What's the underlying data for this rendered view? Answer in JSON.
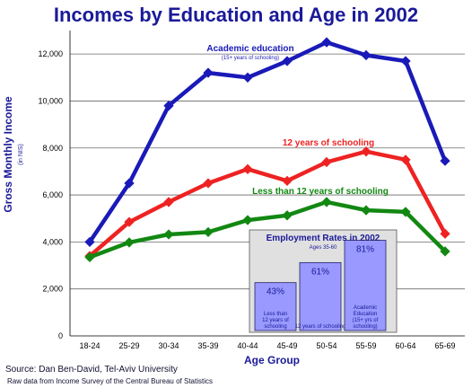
{
  "chart_data": [
    {
      "type": "line",
      "title": "Incomes by Education and Age in 2002",
      "ylabel": "Gross Monthly Income",
      "ylabel_sub": "(in NIS)",
      "xlabel": "Age Group",
      "categories": [
        "18-24",
        "25-29",
        "30-34",
        "35-39",
        "40-44",
        "45-49",
        "50-54",
        "55-59",
        "60-64",
        "65-69"
      ],
      "yticks": [
        "0",
        "2,000",
        "4,000",
        "6,000",
        "8,000",
        "10,000",
        "12,000"
      ],
      "ylim": [
        0,
        13000
      ],
      "grid": true,
      "series": [
        {
          "name": "Academic education",
          "subtitle": "(15+ years of schooling)",
          "color": "#1a1ab8",
          "values": [
            4000,
            6500,
            9800,
            11200,
            11000,
            11700,
            12500,
            11950,
            11700,
            7450
          ]
        },
        {
          "name": "12 years of schooling",
          "color": "#ee2222",
          "values": [
            3400,
            4850,
            5700,
            6500,
            7100,
            6600,
            7400,
            7850,
            7500,
            4350
          ]
        },
        {
          "name": "Less than 12 years of schooling",
          "color": "#128812",
          "values": [
            3350,
            3980,
            4320,
            4420,
            4930,
            5130,
            5700,
            5350,
            5280,
            3600
          ]
        }
      ]
    },
    {
      "type": "bar",
      "title": "Employment Rates in 2002",
      "subtitle": "Ages 35-60",
      "categories": [
        "Less than 12 years of schooling",
        "12 years of schooling",
        "Academic Education (15+ yrs of schooling)"
      ],
      "values": [
        43,
        61,
        81
      ],
      "value_labels": [
        "43%",
        "61%",
        "81%"
      ],
      "bar_color": "#9999ff",
      "panel_color": "#e0e0e0"
    }
  ],
  "source": "Source: Dan Ben-David, Tel-Aviv University",
  "raw_data_note": "Raw data from Income Survey of the Central Bureau of Statistics"
}
